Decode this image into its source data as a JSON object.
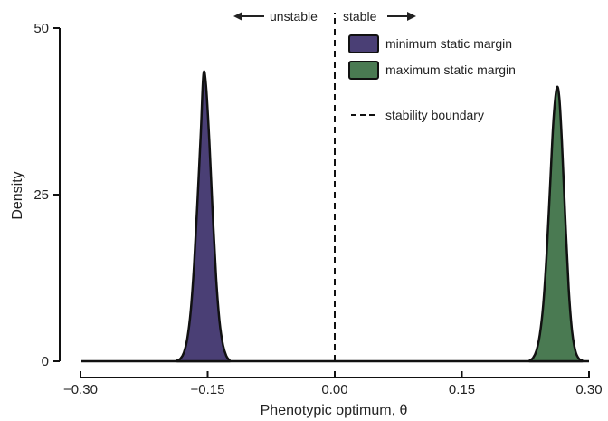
{
  "chart_data": {
    "type": "area",
    "xlabel": "Phenotypic optimum,  θ",
    "ylabel": "Density",
    "xlim": [
      -0.3,
      0.3
    ],
    "ylim": [
      0,
      50
    ],
    "xticks": [
      -0.3,
      -0.15,
      0.0,
      0.15,
      0.3
    ],
    "xtick_labels": [
      "−0.30",
      "−0.15",
      "0.00",
      "0.15",
      "0.30"
    ],
    "yticks": [
      0,
      25,
      50
    ],
    "ytick_labels": [
      "0",
      "25",
      "50"
    ],
    "grid": false,
    "legend_position": "top-center",
    "series": [
      {
        "name": "minimum static margin",
        "color": "#4a3f75",
        "peak_x": -0.155,
        "peak_density": 43,
        "x": [
          -0.186,
          -0.182,
          -0.178,
          -0.174,
          -0.17,
          -0.166,
          -0.162,
          -0.158,
          -0.155,
          -0.152,
          -0.148,
          -0.144,
          -0.14,
          -0.136,
          -0.132,
          -0.128,
          -0.124
        ],
        "y": [
          0.1,
          0.4,
          1.3,
          3.4,
          7.5,
          14.5,
          24.0,
          34.5,
          43.0,
          41.5,
          33.0,
          22.0,
          12.5,
          6.0,
          2.5,
          0.8,
          0.1
        ]
      },
      {
        "name": "maximum static margin",
        "color": "#4a7a52",
        "peak_x": 0.262,
        "peak_density": 41,
        "x": [
          0.23,
          0.234,
          0.238,
          0.242,
          0.246,
          0.25,
          0.254,
          0.258,
          0.262,
          0.265,
          0.268,
          0.272,
          0.276,
          0.28,
          0.284,
          0.288,
          0.292
        ],
        "y": [
          0.1,
          0.5,
          1.6,
          4.0,
          8.5,
          16.0,
          26.0,
          36.0,
          41.0,
          39.5,
          33.0,
          21.5,
          11.0,
          4.5,
          1.5,
          0.4,
          0.1
        ]
      }
    ],
    "reference_line": {
      "x": 0.0,
      "style": "dashed",
      "name": "stability boundary"
    },
    "annotations": {
      "left_arrow_label": "unstable",
      "right_arrow_label": "stable"
    }
  }
}
